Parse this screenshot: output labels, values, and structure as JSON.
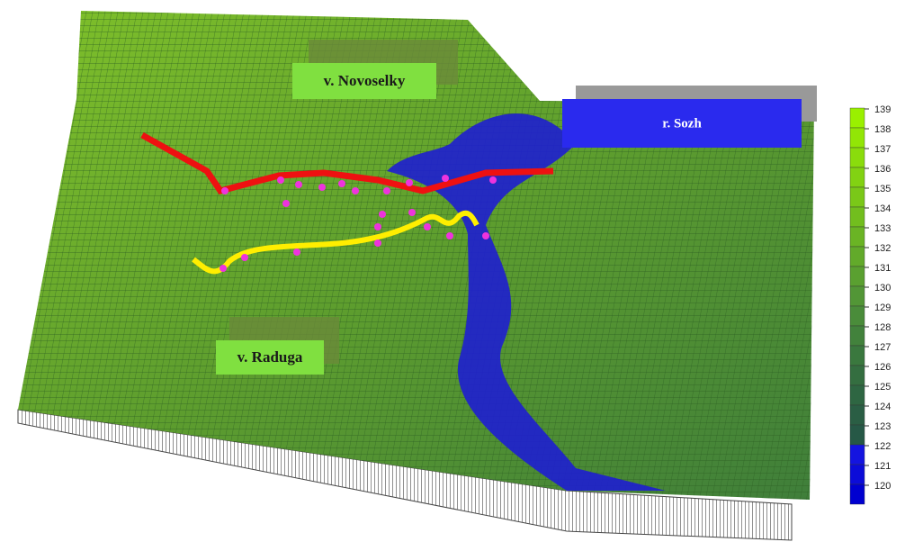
{
  "labels": {
    "north_village": "v. Novoselky",
    "river": "r. Sozh",
    "south_village": "v. Raduga"
  },
  "legend": {
    "levels": [
      {
        "value": 139,
        "color": "#9af000"
      },
      {
        "value": 138,
        "color": "#92e606"
      },
      {
        "value": 137,
        "color": "#8adc0c"
      },
      {
        "value": 136,
        "color": "#82d212"
      },
      {
        "value": 135,
        "color": "#7ac818"
      },
      {
        "value": 134,
        "color": "#72be1e"
      },
      {
        "value": 133,
        "color": "#6ab424"
      },
      {
        "value": 132,
        "color": "#62aa2a"
      },
      {
        "value": 131,
        "color": "#5aa030"
      },
      {
        "value": 130,
        "color": "#529636"
      },
      {
        "value": 129,
        "color": "#4a8c3a"
      },
      {
        "value": 128,
        "color": "#42823c"
      },
      {
        "value": 127,
        "color": "#3a783e"
      },
      {
        "value": 126,
        "color": "#346e40"
      },
      {
        "value": 125,
        "color": "#2e6642"
      },
      {
        "value": 124,
        "color": "#2a5e44"
      },
      {
        "value": 123,
        "color": "#265846"
      },
      {
        "value": 122,
        "color": "#1414e0"
      },
      {
        "value": 121,
        "color": "#0c0cd8"
      },
      {
        "value": 120,
        "color": "#0000d0"
      }
    ]
  }
}
